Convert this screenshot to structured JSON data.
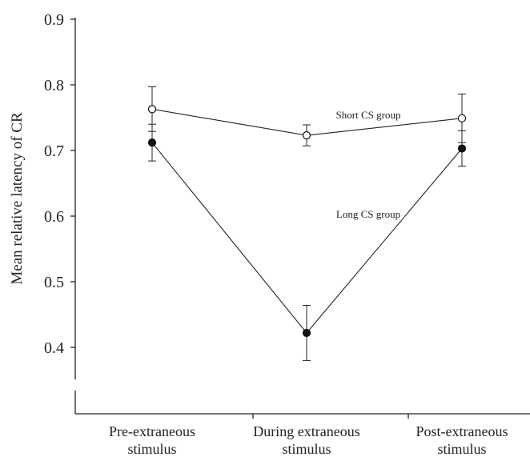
{
  "chart_data": {
    "type": "line",
    "title": "",
    "xlabel": "",
    "ylabel": "Mean relative latency of CR",
    "ylim": [
      0.4,
      0.9
    ],
    "y_ticks": [
      "0.4",
      "0.5",
      "0.6",
      "0.7",
      "0.8",
      "0.9"
    ],
    "categories": [
      [
        "Pre-extraneous",
        "stimulus"
      ],
      [
        "During extraneous",
        "stimulus"
      ],
      [
        "Post-extraneous",
        "stimulus"
      ]
    ],
    "grid": false,
    "series": [
      {
        "name": "Short CS group",
        "marker": "open-circle",
        "values": [
          0.763,
          0.723,
          0.749
        ],
        "error": [
          0.034,
          0.016,
          0.037
        ]
      },
      {
        "name": "Long CS group",
        "marker": "filled-circle",
        "values": [
          0.712,
          0.422,
          0.703
        ],
        "error": [
          0.028,
          0.042,
          0.027
        ]
      }
    ]
  }
}
